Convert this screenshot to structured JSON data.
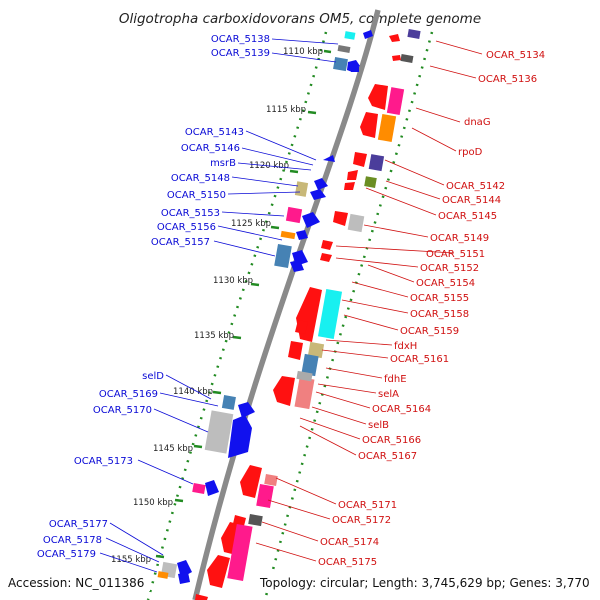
{
  "title": "Oligotropha carboxidovorans OM5, complete genome",
  "footer": {
    "accession": "Accession: NC_011386",
    "topology": "Topology: circular; Length: 3,745,629 bp; Genes: 3,770"
  },
  "kbp_ticks": [
    "1110 kbp",
    "1115 kbp",
    "1120 kbp",
    "1125 kbp",
    "1130 kbp",
    "1135 kbp",
    "1140 kbp",
    "1145 kbp",
    "1150 kbp",
    "1155 kbp"
  ],
  "left_labels": [
    "OCAR_5138",
    "OCAR_5139",
    "OCAR_5143",
    "OCAR_5146",
    "msrB",
    "OCAR_5148",
    "OCAR_5150",
    "OCAR_5153",
    "OCAR_5156",
    "OCAR_5157",
    "selD",
    "OCAR_5169",
    "OCAR_5170",
    "OCAR_5173",
    "OCAR_5177",
    "OCAR_5178",
    "OCAR_5179"
  ],
  "right_labels": [
    "OCAR_5134",
    "OCAR_5136",
    "dnaG",
    "rpoD",
    "OCAR_5142",
    "OCAR_5144",
    "OCAR_5145",
    "OCAR_5149",
    "OCAR_5151",
    "OCAR_5152",
    "OCAR_5154",
    "OCAR_5155",
    "OCAR_5158",
    "OCAR_5159",
    "fdxH",
    "OCAR_5161",
    "fdhE",
    "selA",
    "OCAR_5164",
    "selB",
    "OCAR_5166",
    "OCAR_5167",
    "OCAR_5171",
    "OCAR_5172",
    "OCAR_5174",
    "OCAR_5175"
  ],
  "colors": {
    "backbone": "#8a8a8a",
    "left_label": "#0b0bd6",
    "right_label": "#d01010",
    "dotted_track": "#228b22",
    "strand_minus": "#ff1111",
    "strand_plus": "#1111ee",
    "cds_pink": "#ff1a8c",
    "cds_orange": "#ff8c00",
    "cds_indigo": "#4b3d9b",
    "cds_olive": "#6b8e23",
    "cds_khaki": "#c8b878",
    "cds_grey": "#bdbdbd",
    "cds_cyan": "#18f0f0",
    "cds_steel": "#4682b4",
    "cds_salmon": "#f08080"
  }
}
